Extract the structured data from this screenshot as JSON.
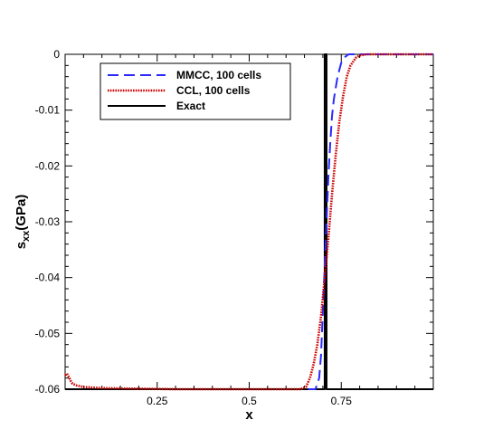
{
  "chart_data": {
    "type": "line",
    "title": "",
    "xlabel": "x",
    "ylabel": {
      "main": "s",
      "sub": "xx",
      "tail": "(GPa)"
    },
    "xlim": [
      0.0,
      1.0
    ],
    "ylim": [
      -0.06,
      0.0
    ],
    "xticks": [
      0.25,
      0.5,
      0.75
    ],
    "xtick_labels": [
      "0.25",
      "0.5",
      "0.75"
    ],
    "yticks": [
      0,
      -0.01,
      -0.02,
      -0.03,
      -0.04,
      -0.05,
      -0.06
    ],
    "ytick_labels": [
      "0",
      "-0.01",
      "-0.02",
      "-0.03",
      "-0.04",
      "-0.05",
      "-0.06"
    ],
    "grid": false,
    "legend_position": "top-left",
    "series": [
      {
        "name": "MMCC, 100 cells",
        "color": "#2a2aff",
        "style": "dashed",
        "x": [
          0.66,
          0.68,
          0.69,
          0.695,
          0.7,
          0.705,
          0.71,
          0.715,
          0.72,
          0.725,
          0.73,
          0.74,
          0.75,
          0.76,
          0.77,
          0.78,
          0.8,
          1.0
        ],
        "y": [
          -0.06,
          -0.06,
          -0.058,
          -0.054,
          -0.046,
          -0.038,
          -0.03,
          -0.022,
          -0.016,
          -0.011,
          -0.008,
          -0.004,
          -0.0015,
          -0.0005,
          0.0,
          0.0,
          0.0,
          0.0
        ]
      },
      {
        "name": "CCL, 100 cells",
        "color": "#cc0000",
        "style": "dotted",
        "x": [
          0.0,
          0.005,
          0.01,
          0.015,
          0.02,
          0.03,
          0.05,
          0.1,
          0.2,
          0.3,
          0.4,
          0.5,
          0.6,
          0.64,
          0.655,
          0.665,
          0.675,
          0.685,
          0.695,
          0.705,
          0.715,
          0.725,
          0.735,
          0.745,
          0.755,
          0.765,
          0.775,
          0.79,
          0.8,
          0.82,
          0.85,
          1.0
        ],
        "y": [
          -0.0575,
          -0.0572,
          -0.0578,
          -0.0585,
          -0.059,
          -0.0593,
          -0.0596,
          -0.0598,
          -0.0599,
          -0.06,
          -0.06,
          -0.06,
          -0.06,
          -0.06,
          -0.0595,
          -0.058,
          -0.0555,
          -0.052,
          -0.047,
          -0.04,
          -0.033,
          -0.025,
          -0.018,
          -0.012,
          -0.0075,
          -0.004,
          -0.002,
          -0.0006,
          -0.0002,
          0.0,
          0.0,
          0.0
        ]
      },
      {
        "name": "Exact",
        "color": "#000000",
        "style": "solid",
        "x": [
          0.0,
          0.705,
          0.705,
          0.71,
          0.71,
          1.0
        ],
        "y": [
          -0.06,
          -0.06,
          0.0,
          0.0,
          -0.06,
          -0.06
        ]
      }
    ]
  }
}
